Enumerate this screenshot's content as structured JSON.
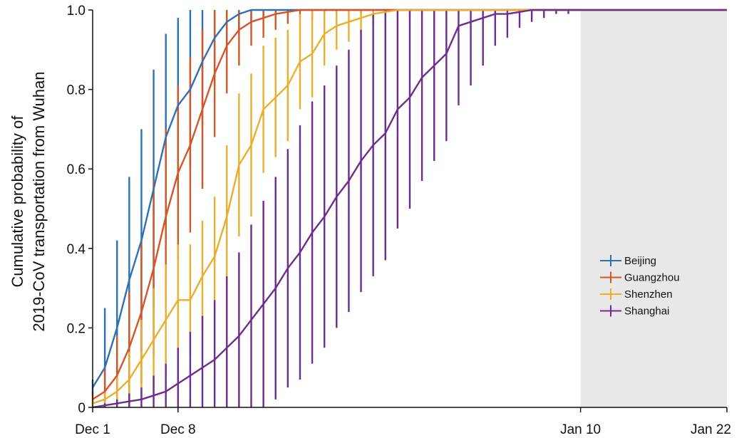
{
  "chart_data": {
    "type": "line",
    "ylabel": [
      "Cumulative probability of",
      "2019-CoV transportation from Wuhan"
    ],
    "x_ticks": [
      "Dec 1",
      "Dec 8",
      "Jan 10",
      "Jan 22"
    ],
    "y_ticks": [
      "0",
      "0.2",
      "0.4",
      "0.6",
      "0.8",
      "1.0"
    ],
    "ylim": [
      0,
      1
    ],
    "xlim_days_from_dec1": [
      0,
      52
    ],
    "shaded_region": {
      "from": "Jan 10",
      "to": "Jan 22"
    },
    "legend_position": "bottom-right",
    "grid": false,
    "series": [
      {
        "name": "Beijing",
        "color": "#2e70b5",
        "day": [
          0,
          1,
          2,
          3,
          4,
          5,
          6,
          7,
          8,
          9,
          10,
          11,
          12,
          13,
          14,
          15,
          16,
          52
        ],
        "y": [
          0.05,
          0.1,
          0.2,
          0.32,
          0.42,
          0.55,
          0.68,
          0.76,
          0.8,
          0.87,
          0.93,
          0.97,
          0.99,
          1.0,
          1.0,
          1.0,
          1.0,
          1.0
        ],
        "err": [
          0.02,
          0.15,
          0.22,
          0.26,
          0.28,
          0.3,
          0.26,
          0.22,
          0.2,
          0.16,
          0.12,
          0.08,
          0.05,
          0.03,
          0.02,
          0.01,
          0.0,
          0.0
        ]
      },
      {
        "name": "Guangzhou",
        "color": "#d35627",
        "day": [
          0,
          1,
          2,
          3,
          4,
          5,
          6,
          7,
          8,
          9,
          10,
          11,
          12,
          13,
          14,
          15,
          16,
          17,
          18,
          19,
          20,
          22,
          24,
          52
        ],
        "y": [
          0.02,
          0.04,
          0.08,
          0.15,
          0.24,
          0.35,
          0.48,
          0.59,
          0.66,
          0.75,
          0.84,
          0.91,
          0.95,
          0.97,
          0.98,
          0.99,
          0.995,
          1.0,
          1.0,
          1.0,
          1.0,
          1.0,
          1.0,
          1.0
        ],
        "err": [
          0.02,
          0.06,
          0.1,
          0.14,
          0.18,
          0.22,
          0.22,
          0.22,
          0.22,
          0.2,
          0.16,
          0.12,
          0.09,
          0.06,
          0.05,
          0.04,
          0.03,
          0.02,
          0.02,
          0.01,
          0.01,
          0.01,
          0.0,
          0.0
        ]
      },
      {
        "name": "Shenzhen",
        "color": "#e9ae2e",
        "day": [
          0,
          1,
          2,
          3,
          4,
          5,
          6,
          7,
          8,
          9,
          10,
          11,
          12,
          13,
          14,
          15,
          16,
          17,
          18,
          19,
          20,
          21,
          22,
          23,
          24,
          25,
          26,
          27,
          28,
          29,
          30,
          32,
          34,
          36,
          52
        ],
        "y": [
          0.01,
          0.02,
          0.04,
          0.07,
          0.12,
          0.17,
          0.22,
          0.27,
          0.27,
          0.33,
          0.38,
          0.48,
          0.61,
          0.66,
          0.75,
          0.78,
          0.81,
          0.87,
          0.89,
          0.94,
          0.96,
          0.97,
          0.98,
          0.99,
          0.995,
          1.0,
          1.0,
          1.0,
          1.0,
          1.0,
          1.0,
          1.0,
          1.0,
          1.0,
          1.0
        ],
        "err": [
          0.01,
          0.02,
          0.04,
          0.07,
          0.1,
          0.13,
          0.14,
          0.14,
          0.14,
          0.14,
          0.15,
          0.18,
          0.18,
          0.18,
          0.16,
          0.15,
          0.14,
          0.12,
          0.11,
          0.08,
          0.06,
          0.05,
          0.04,
          0.03,
          0.03,
          0.02,
          0.02,
          0.01,
          0.01,
          0.01,
          0.01,
          0.01,
          0.0,
          0.0,
          0.0
        ]
      },
      {
        "name": "Shanghai",
        "color": "#6e2c8e",
        "day": [
          0,
          1,
          2,
          3,
          4,
          5,
          6,
          7,
          8,
          9,
          10,
          11,
          12,
          13,
          14,
          15,
          16,
          17,
          18,
          19,
          20,
          21,
          22,
          23,
          24,
          25,
          26,
          27,
          28,
          29,
          30,
          31,
          32,
          33,
          34,
          35,
          36,
          37,
          38,
          39,
          40,
          52
        ],
        "y": [
          0.0,
          0.005,
          0.01,
          0.015,
          0.02,
          0.03,
          0.04,
          0.06,
          0.08,
          0.1,
          0.12,
          0.15,
          0.18,
          0.22,
          0.26,
          0.3,
          0.35,
          0.39,
          0.44,
          0.48,
          0.53,
          0.57,
          0.62,
          0.66,
          0.69,
          0.75,
          0.78,
          0.83,
          0.86,
          0.89,
          0.96,
          0.97,
          0.98,
          0.99,
          0.99,
          0.995,
          1.0,
          1.0,
          1.0,
          1.0,
          1.0,
          1.0
        ],
        "err": [
          0.0,
          0.005,
          0.01,
          0.02,
          0.03,
          0.05,
          0.07,
          0.09,
          0.11,
          0.13,
          0.15,
          0.18,
          0.21,
          0.24,
          0.26,
          0.28,
          0.3,
          0.32,
          0.33,
          0.33,
          0.33,
          0.33,
          0.33,
          0.33,
          0.32,
          0.3,
          0.28,
          0.26,
          0.24,
          0.22,
          0.2,
          0.16,
          0.12,
          0.08,
          0.06,
          0.04,
          0.03,
          0.02,
          0.01,
          0.01,
          0.0,
          0.0
        ]
      }
    ]
  }
}
